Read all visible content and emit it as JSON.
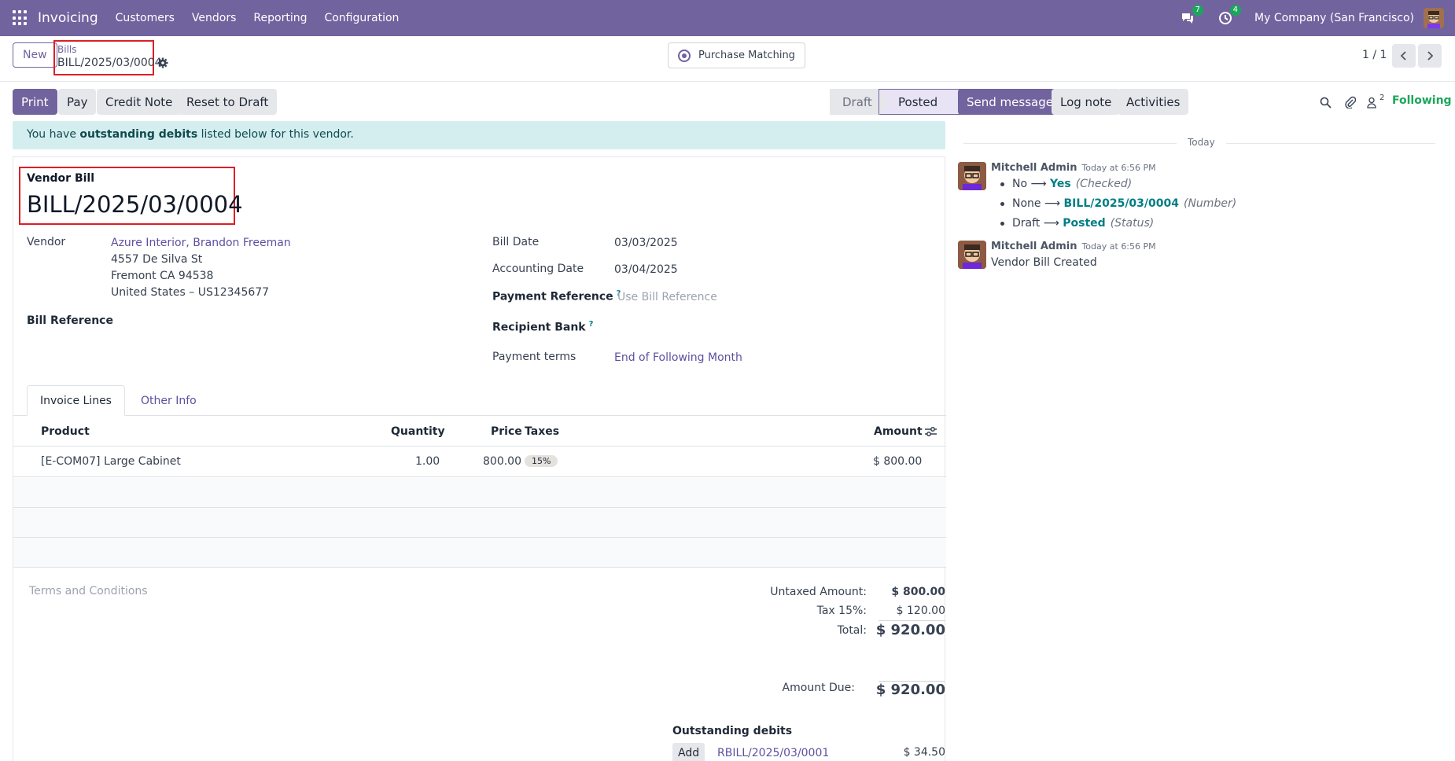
{
  "navbar": {
    "app_name": "Invoicing",
    "menu": [
      "Customers",
      "Vendors",
      "Reporting",
      "Configuration"
    ],
    "messages_count": "7",
    "activities_count": "4",
    "company": "My Company (San Francisco)"
  },
  "control": {
    "new_label": "New",
    "breadcrumb_parent": "Bills",
    "breadcrumb_current": "BILL/2025/03/0004",
    "purchase_matching_label": "Purchase Matching",
    "pager": "1 / 1"
  },
  "actions": {
    "print": "Print",
    "pay": "Pay",
    "credit_note": "Credit Note",
    "reset_to_draft": "Reset to Draft"
  },
  "statusbar": {
    "draft": "Draft",
    "posted": "Posted",
    "current": "Posted"
  },
  "alert": {
    "prefix": "You have ",
    "bold": "outstanding debits",
    "suffix": " listed below for this vendor."
  },
  "form": {
    "doc_type": "Vendor Bill",
    "doc_number": "BILL/2025/03/0004",
    "vendor_label": "Vendor",
    "vendor_name": "Azure Interior, Brandon Freeman",
    "vendor_address": [
      "4557 De Silva St",
      "Fremont CA 94538",
      "United States – US12345677"
    ],
    "bill_reference_label": "Bill Reference",
    "bill_date_label": "Bill Date",
    "bill_date": "03/03/2025",
    "accounting_date_label": "Accounting Date",
    "accounting_date": "03/04/2025",
    "payment_reference_label": "Payment Reference",
    "payment_reference_placeholder": "Use Bill Reference",
    "recipient_bank_label": "Recipient Bank",
    "payment_terms_label": "Payment terms",
    "payment_terms": "End of Following Month",
    "help_mark": "?"
  },
  "tabs": [
    "Invoice Lines",
    "Other Info"
  ],
  "lines": {
    "headers": {
      "product": "Product",
      "quantity": "Quantity",
      "price": "Price",
      "taxes": "Taxes",
      "amount": "Amount"
    },
    "rows": [
      {
        "product": "[E-COM07] Large Cabinet",
        "quantity": "1.00",
        "price": "800.00",
        "tax": "15%",
        "amount": "$ 800.00"
      }
    ]
  },
  "terms_placeholder": "Terms and Conditions",
  "totals": {
    "untaxed_label": "Untaxed Amount:",
    "untaxed": "$ 800.00",
    "tax_label": "Tax 15%:",
    "tax": "$ 120.00",
    "total_label": "Total:",
    "total": "$ 920.00",
    "amount_due_label": "Amount Due:",
    "amount_due": "$ 920.00"
  },
  "outstanding": {
    "title": "Outstanding debits",
    "add_label": "Add",
    "ref": "RBILL/2025/03/0001",
    "amount": "$ 34.50"
  },
  "chatter": {
    "send_message": "Send message",
    "log_note": "Log note",
    "activities": "Activities",
    "followers_count": "2",
    "following": "Following",
    "today": "Today",
    "messages": [
      {
        "author": "Mitchell Admin",
        "date": "Today at 6:56 PM",
        "tracking": [
          {
            "old": "No",
            "new": "Yes",
            "field": "(Checked)"
          },
          {
            "old": "None",
            "new": "BILL/2025/03/0004",
            "field": "(Number)"
          },
          {
            "old": "Draft",
            "new": "Posted",
            "field": "(Status)"
          }
        ]
      },
      {
        "author": "Mitchell Admin",
        "date": "Today at 6:56 PM",
        "body": "Vendor Bill Created"
      }
    ]
  },
  "colors": {
    "brand": "#71639e",
    "link": "#5f4fa0",
    "success": "#1ba65b",
    "alert_bg": "#d4eef0",
    "highlight_border": "#dc1f26"
  }
}
